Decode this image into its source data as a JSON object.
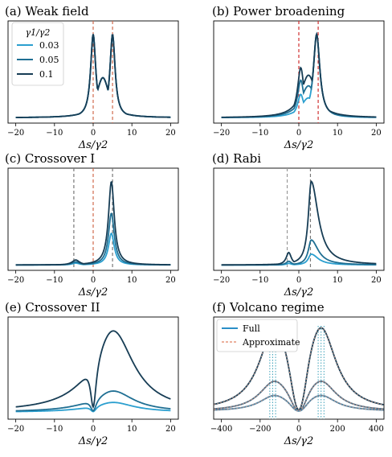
{
  "figure": {
    "background": "#ffffff"
  },
  "chart_data": [
    {
      "type": "line",
      "title": "(a) Weak field",
      "xlabel": "Δs/γ2",
      "xlim": [
        -22,
        22
      ],
      "xticks": [
        -20,
        -10,
        0,
        10,
        20
      ],
      "tick_labels": [
        "−20",
        "−10",
        "0",
        "10",
        "20"
      ],
      "ylim": [
        0,
        1.15
      ],
      "vlines": [
        {
          "x": 0,
          "color": "#d06a4e"
        },
        {
          "x": 5,
          "color": "#d06a4e"
        }
      ],
      "legend": {
        "title": "γ1/γ2",
        "placement": "top-left",
        "entries": [
          "0.03",
          "0.05",
          "0.1"
        ]
      },
      "series": [
        {
          "name": "0.03",
          "color": "#2b9fcf",
          "amplitude": 1.0
        },
        {
          "name": "0.05",
          "color": "#1f6f93",
          "amplitude": 1.0
        },
        {
          "name": "0.1",
          "color": "#173d55",
          "amplitude": 1.0
        }
      ],
      "curve": {
        "kind": "double",
        "peaks": [
          0,
          5
        ],
        "widths": [
          0.8,
          0.8
        ],
        "heights": [
          1.0,
          1.0
        ]
      }
    },
    {
      "type": "line",
      "title": "(b) Power broadening",
      "xlabel": "Δs/γ2",
      "xlim": [
        -22,
        22
      ],
      "xticks": [
        -20,
        -10,
        0,
        10,
        20
      ],
      "tick_labels": [
        "−20",
        "−10",
        "0",
        "10",
        "20"
      ],
      "ylim": [
        0,
        1.15
      ],
      "vlines": [
        {
          "x": 0,
          "color": "#d03030"
        },
        {
          "x": 5,
          "color": "#d03030"
        }
      ],
      "series": [
        {
          "name": "0.03",
          "color": "#2b9fcf",
          "amplitude": 1.0,
          "left": 0.28
        },
        {
          "name": "0.05",
          "color": "#1f6f93",
          "amplitude": 1.0,
          "left": 0.45
        },
        {
          "name": "0.1",
          "color": "#173d55",
          "amplitude": 1.0,
          "left": 0.6
        }
      ],
      "curve": {
        "kind": "asym",
        "peaks": [
          0.5,
          4.6
        ],
        "widths": [
          1.0,
          1.0
        ]
      }
    },
    {
      "type": "line",
      "title": "(c) Crossover I",
      "xlabel": "Δs/γ2",
      "xlim": [
        -22,
        22
      ],
      "xticks": [
        -20,
        -10,
        0,
        10,
        20
      ],
      "tick_labels": [
        "−20",
        "−10",
        "0",
        "10",
        "20"
      ],
      "ylim": [
        0,
        1.15
      ],
      "vlines": [
        {
          "x": -5,
          "color": "#777777"
        },
        {
          "x": 0,
          "color": "#d06a4e"
        },
        {
          "x": 5,
          "color": "#777777"
        }
      ],
      "series": [
        {
          "name": "0.03",
          "color": "#2b9fcf",
          "amplitude": 0.38
        },
        {
          "name": "0.05",
          "color": "#1f6f93",
          "amplitude": 0.62
        },
        {
          "name": "0.1",
          "color": "#173d55",
          "amplitude": 1.0
        }
      ],
      "curve": {
        "kind": "single",
        "peaks": [
          4.7
        ],
        "widths": [
          0.9
        ],
        "small": [
          -4.5,
          0.06
        ]
      }
    },
    {
      "type": "line",
      "title": "(d) Rabi",
      "xlabel": "Δs/γ2",
      "xlim": [
        -22,
        22
      ],
      "xticks": [
        -20,
        -10,
        0,
        10,
        20
      ],
      "tick_labels": [
        "−20",
        "−10",
        "0",
        "10",
        "20"
      ],
      "ylim": [
        0,
        1.15
      ],
      "vlines": [
        {
          "x": -3,
          "color": "#999999"
        },
        {
          "x": 3,
          "color": "#777777"
        }
      ],
      "series": [
        {
          "name": "0.03",
          "color": "#2b9fcf",
          "amplitude": 0.13
        },
        {
          "name": "0.05",
          "color": "#1f6f93",
          "amplitude": 0.3
        },
        {
          "name": "0.1",
          "color": "#173d55",
          "amplitude": 1.0
        }
      ],
      "curve": {
        "kind": "rabi",
        "peaks": [
          3.2
        ],
        "widths": [
          1.0
        ],
        "small": [
          -2.6,
          0.15
        ]
      }
    },
    {
      "type": "line",
      "title": "(e) Crossover II",
      "xlabel": "Δs/γ2",
      "xlim": [
        -22,
        22
      ],
      "xticks": [
        -20,
        -10,
        0,
        10,
        20
      ],
      "tick_labels": [
        "−20",
        "−10",
        "0",
        "10",
        "20"
      ],
      "ylim": [
        0,
        1.15
      ],
      "vlines": [],
      "series": [
        {
          "name": "0.03",
          "color": "#2b9fcf",
          "amplitude": 0.12
        },
        {
          "name": "0.05",
          "color": "#1f6f93",
          "amplitude": 0.26
        },
        {
          "name": "0.1",
          "color": "#173d55",
          "amplitude": 1.0
        }
      ],
      "curve": {
        "kind": "broad",
        "peaks": [
          5
        ],
        "widths": [
          6.5
        ],
        "small": [
          -1.8,
          0.09
        ]
      }
    },
    {
      "type": "line",
      "title": "(f) Volcano regime",
      "xlabel": "Δs/γ2",
      "xlim": [
        -440,
        440
      ],
      "xticks": [
        -400,
        -200,
        0,
        200,
        400
      ],
      "tick_labels": [
        "−400",
        "−200",
        "0",
        "200",
        "400"
      ],
      "ylim": [
        0,
        1.15
      ],
      "vlines": [],
      "vlines_dotted": [
        -150,
        -135,
        -120,
        100,
        115,
        130
      ],
      "vline_dotted_color": "#3aa0b8",
      "legend": {
        "placement": "top-left",
        "entries": [
          "Full",
          "Approximate"
        ],
        "colors": [
          "#2b8fc7",
          "#e08060"
        ]
      },
      "series": [
        {
          "name": "Full",
          "color": "#173d55",
          "amplitude": 1.0
        },
        {
          "name": "Full",
          "color": "#4a6a82",
          "amplitude": 0.36
        },
        {
          "name": "Full",
          "color": "#4a7fa0",
          "amplitude": 0.19
        }
      ],
      "curve": {
        "kind": "volcano",
        "peaks": [
          -125,
          115
        ],
        "widths": [
          95,
          95
        ]
      }
    }
  ]
}
